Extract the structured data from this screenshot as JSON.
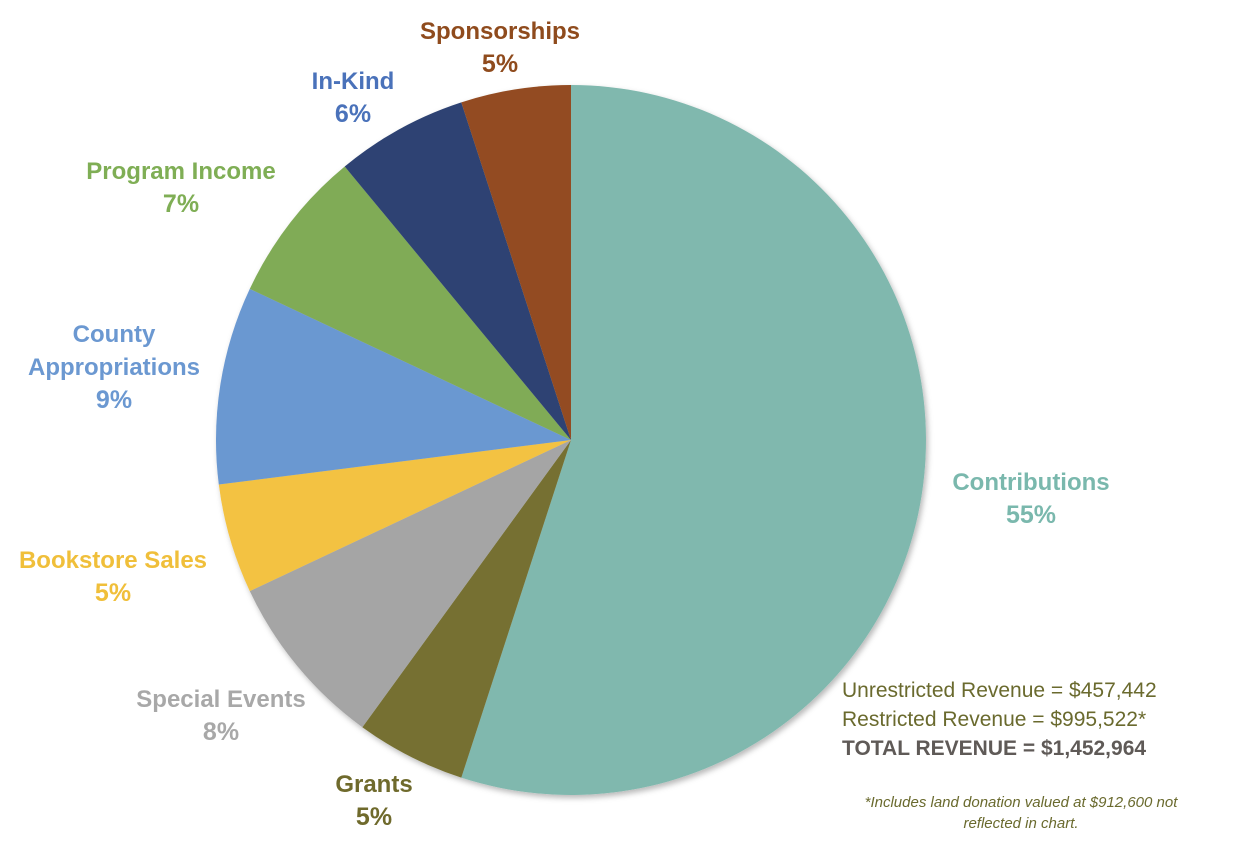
{
  "chart_data": {
    "type": "pie",
    "title": "",
    "slices": [
      {
        "name": "Contributions",
        "label_lines": [
          "Contributions"
        ],
        "percent_label": "55%",
        "value": 55,
        "color": "#80b8ae"
      },
      {
        "name": "Grants",
        "label_lines": [
          "Grants"
        ],
        "percent_label": "5%",
        "value": 5,
        "color": "#767031"
      },
      {
        "name": "Special Events",
        "label_lines": [
          "Special Events"
        ],
        "percent_label": "8%",
        "value": 8,
        "color": "#a5a5a5"
      },
      {
        "name": "Bookstore Sales",
        "label_lines": [
          "Bookstore Sales"
        ],
        "percent_label": "5%",
        "value": 5,
        "color": "#f3c243"
      },
      {
        "name": "County Appropriations",
        "label_lines": [
          "County",
          "Appropriations"
        ],
        "percent_label": "9%",
        "value": 9,
        "color": "#6b98d1"
      },
      {
        "name": "Program Income",
        "label_lines": [
          "Program Income"
        ],
        "percent_label": "7%",
        "value": 7,
        "color": "#80ab57"
      },
      {
        "name": "In-Kind",
        "label_lines": [
          "In-Kind"
        ],
        "percent_label": "6%",
        "value": 6,
        "color": "#2d4373"
      },
      {
        "name": "Sponsorships",
        "label_lines": [
          "Sponsorships"
        ],
        "percent_label": "5%",
        "value": 5,
        "color": "#934c20"
      }
    ],
    "label_colors": {
      "Contributions": "#7ab8ad",
      "Grants": "#6f6a2c",
      "Special Events": "#a8a8a8",
      "Bookstore Sales": "#f0bf3a",
      "County Appropriations": "#6b98d1",
      "Program Income": "#7fae55",
      "In-Kind": "#4a72ba",
      "Sponsorships": "#8f4b1d"
    }
  },
  "summary": {
    "unrestricted": "Unrestricted Revenue = $457,442",
    "restricted": "Restricted Revenue = $995,522*",
    "total": "TOTAL REVENUE = $1,452,964"
  },
  "footnote": {
    "line1": "*Includes land donation valued at $912,600 not",
    "line2": "reflected in chart."
  }
}
